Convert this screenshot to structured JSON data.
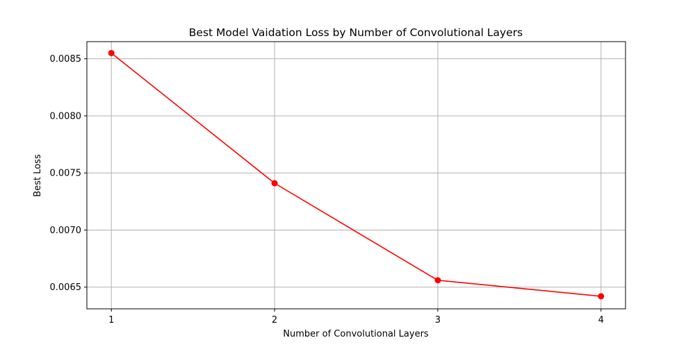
{
  "chart_data": {
    "type": "line",
    "title": "Best Model Vaidation Loss by Number of Convolutional Layers",
    "xlabel": "Number of Convolutional Layers",
    "ylabel": "Best Loss",
    "x": [
      1,
      2,
      3,
      4
    ],
    "x_tick_labels": [
      "1",
      "2",
      "3",
      "4"
    ],
    "y_ticks": [
      0.0065,
      0.007,
      0.0075,
      0.008,
      0.0085
    ],
    "y_tick_labels": [
      "0.0065",
      "0.0070",
      "0.0075",
      "0.0080",
      "0.0085"
    ],
    "xlim": [
      0.85,
      4.15
    ],
    "ylim": [
      0.00631,
      0.00865
    ],
    "grid": true,
    "legend": "none",
    "series": [
      {
        "values": [
          0.00855,
          0.00741,
          0.00656,
          0.00642
        ],
        "color": "#ff0000",
        "marker": "circle"
      }
    ]
  }
}
